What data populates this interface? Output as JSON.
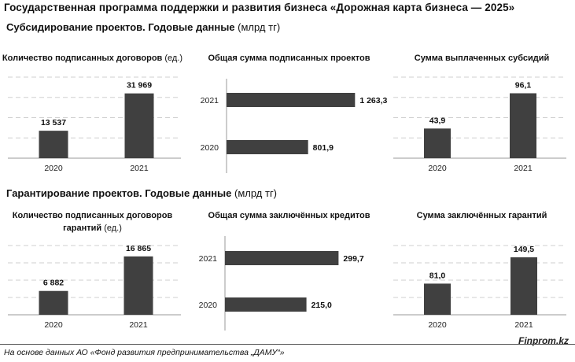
{
  "title": "Государственная программа поддержки и развития бизнеса «Дорожная карта бизнеса — 2025»",
  "sections": [
    {
      "bold": "Субсидирование проектов. Годовые данные",
      "unit": " (млрд тг)"
    },
    {
      "bold": "Гарантирование проектов. Годовые данные",
      "unit": " (млрд тг)"
    }
  ],
  "source": "На основе данных АО «Фонд развития предпринимательства „ДАМУ“»",
  "brand": "Finprom.kz",
  "colors": {
    "bar": "#404040",
    "grid": "#cfcfcf"
  },
  "chart_data": [
    {
      "type": "bar",
      "title": "Количество подписанных договоров",
      "title_unit": " (ед.)",
      "categories": [
        "2020",
        "2021"
      ],
      "values": [
        13537,
        31969
      ],
      "labels": [
        "13 537",
        "31 969"
      ],
      "ylim": [
        0,
        40000
      ],
      "grid": true
    },
    {
      "type": "bar",
      "orientation": "horizontal",
      "title": "Общая сумма подписанных проектов",
      "title_unit": "",
      "categories": [
        "2021",
        "2020"
      ],
      "values": [
        1263.3,
        801.9
      ],
      "labels": [
        "1 263,3",
        "801,9"
      ],
      "xlim": [
        0,
        1400
      ],
      "grid": false
    },
    {
      "type": "bar",
      "title": "Сумма выплаченных субсидий",
      "title_unit": "",
      "categories": [
        "2020",
        "2021"
      ],
      "values": [
        43.9,
        96.1
      ],
      "labels": [
        "43,9",
        "96,1"
      ],
      "ylim": [
        0,
        120
      ],
      "grid": true
    },
    {
      "type": "bar",
      "title": "Количество подписанных договоров гарантий",
      "title_unit": " (ед.)",
      "categories": [
        "2020",
        "2021"
      ],
      "values": [
        6882,
        16865
      ],
      "labels": [
        "6 882",
        "16 865"
      ],
      "ylim": [
        0,
        20000
      ],
      "grid": true
    },
    {
      "type": "bar",
      "orientation": "horizontal",
      "title": "Общая сумма заключённых кредитов",
      "title_unit": "",
      "categories": [
        "2021",
        "2020"
      ],
      "values": [
        299.7,
        215.0
      ],
      "labels": [
        "299,7",
        "215,0"
      ],
      "xlim": [
        0,
        330
      ],
      "grid": false
    },
    {
      "type": "bar",
      "title": "Сумма заключённых гарантий",
      "title_unit": "",
      "categories": [
        "2020",
        "2021"
      ],
      "values": [
        81.0,
        149.5
      ],
      "labels": [
        "81,0",
        "149,5"
      ],
      "ylim": [
        0,
        180
      ],
      "grid": true
    }
  ]
}
